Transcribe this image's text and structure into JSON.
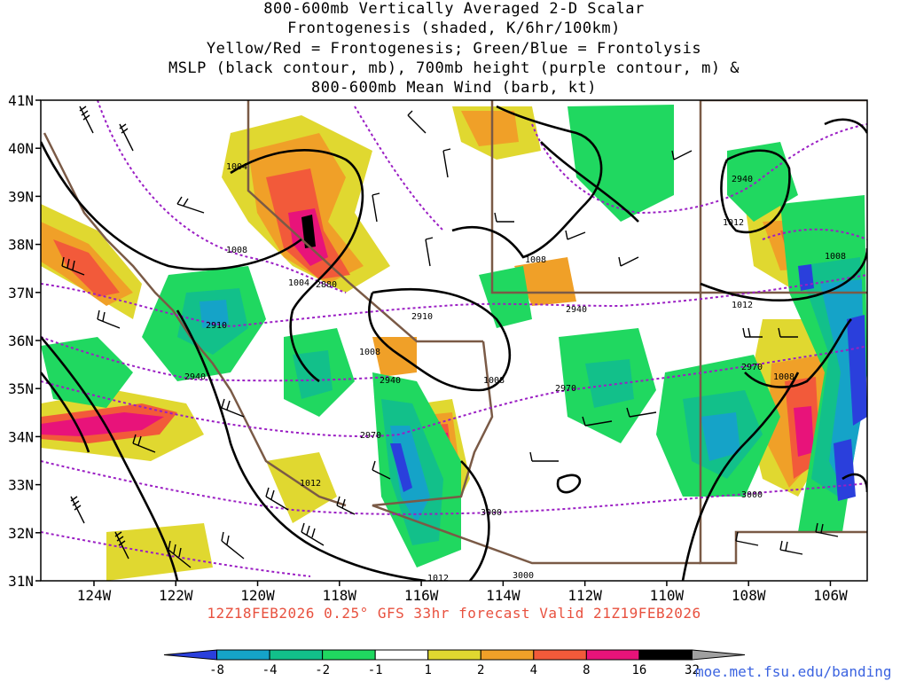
{
  "title": {
    "lines": [
      "800-600mb Vertically Averaged 2-D Scalar",
      "Frontogenesis (shaded, K/6hr/100km)",
      "Yellow/Red = Frontogenesis;  Green/Blue = Frontolysis",
      "MSLP (black contour, mb), 700mb height (purple contour, m) &",
      "800-600mb Mean Wind (barb, kt)"
    ]
  },
  "footer": "12Z18FEB2026 0.25° GFS 33hr forecast Valid 21Z19FEB2026",
  "credit": "moe.met.fsu.edu/banding",
  "axes": {
    "lon_labels": [
      "124W",
      "122W",
      "120W",
      "118W",
      "116W",
      "114W",
      "112W",
      "110W",
      "108W",
      "106W"
    ],
    "lon_values": [
      -124,
      -122,
      -120,
      -118,
      -116,
      -114,
      -112,
      -110,
      -108,
      -106
    ],
    "lat_labels": [
      "41N",
      "40N",
      "39N",
      "38N",
      "37N",
      "36N",
      "35N",
      "34N",
      "33N",
      "32N",
      "31N"
    ],
    "lat_values": [
      41,
      40,
      39,
      38,
      37,
      36,
      35,
      34,
      33,
      32,
      31
    ],
    "lon_range": [
      -125.3,
      -105.1
    ],
    "lat_range": [
      31,
      41
    ]
  },
  "colorbar": {
    "labels": [
      "-8",
      "-4",
      "-2",
      "-1",
      "1",
      "2",
      "4",
      "8",
      "16",
      "32"
    ],
    "colors": [
      "#2a3fdc",
      "#15a3c8",
      "#12c08a",
      "#20d860",
      "#ffffff",
      "#e0d830",
      "#f0a028",
      "#f25a3a",
      "#e8137a",
      "#000000",
      "#a0a0a0"
    ]
  },
  "contours": {
    "mslp_labels": [
      "1004",
      "1008",
      "1004",
      "1008",
      "1008",
      "1008",
      "1012",
      "1012",
      "1008",
      "1008",
      "1012",
      "1012"
    ],
    "height_labels": [
      "2880",
      "2910",
      "2910",
      "2940",
      "2940",
      "2940",
      "2940",
      "2970",
      "2970",
      "2970",
      "3000",
      "3000",
      "3000"
    ]
  },
  "colors": {
    "mslp": "#000000",
    "height": "#9b1fc4",
    "borders": "#7a5a46",
    "footer": "#e8513f",
    "credit": "#3b63e0"
  }
}
